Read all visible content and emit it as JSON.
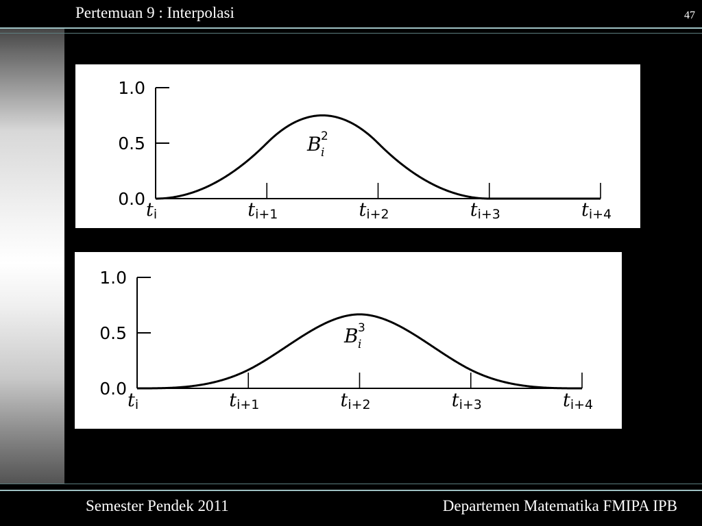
{
  "header": {
    "title": "Pertemuan 9 : Interpolasi",
    "page_number": "47"
  },
  "footer": {
    "left": "Semester Pendek 2011",
    "right": "Departemen Matematika FMIPA IPB"
  },
  "chart_data": [
    {
      "type": "line",
      "function_label": {
        "base": "B",
        "superscript": "2",
        "subscript": "i"
      },
      "knots": [
        {
          "base": "t",
          "sub": "i"
        },
        {
          "base": "t",
          "sub": "i+1"
        },
        {
          "base": "t",
          "sub": "i+2"
        },
        {
          "base": "t",
          "sub": "i+3"
        },
        {
          "base": "t",
          "sub": "i+4"
        }
      ],
      "y_ticks": [
        "0.0",
        "0.5",
        "1.0"
      ],
      "ylim": [
        0,
        1
      ],
      "xlim": [
        0,
        4
      ],
      "degree": 2,
      "support": [
        0,
        3
      ],
      "series": [
        {
          "x": [
            0,
            0.25,
            0.5,
            0.75,
            1,
            1.25,
            1.5,
            1.75,
            2,
            2.25,
            2.5,
            2.75,
            3,
            4
          ],
          "y": [
            0,
            0.03125,
            0.125,
            0.28125,
            0.5,
            0.65625,
            0.75,
            0.65625,
            0.5,
            0.28125,
            0.125,
            0.03125,
            0,
            0
          ]
        }
      ]
    },
    {
      "type": "line",
      "function_label": {
        "base": "B",
        "superscript": "3",
        "subscript": "i"
      },
      "knots": [
        {
          "base": "t",
          "sub": "i"
        },
        {
          "base": "t",
          "sub": "i+1"
        },
        {
          "base": "t",
          "sub": "i+2"
        },
        {
          "base": "t",
          "sub": "i+3"
        },
        {
          "base": "t",
          "sub": "i+4"
        }
      ],
      "y_ticks": [
        "0.0",
        "0.5",
        "1.0"
      ],
      "ylim": [
        0,
        1
      ],
      "xlim": [
        0,
        4
      ],
      "degree": 3,
      "support": [
        0,
        4
      ],
      "series": [
        {
          "x": [
            0,
            0.5,
            1,
            1.5,
            2,
            2.5,
            3,
            3.5,
            4
          ],
          "y": [
            0,
            0.0208,
            0.1667,
            0.4792,
            0.6667,
            0.4792,
            0.1667,
            0.0208,
            0
          ]
        }
      ]
    }
  ]
}
